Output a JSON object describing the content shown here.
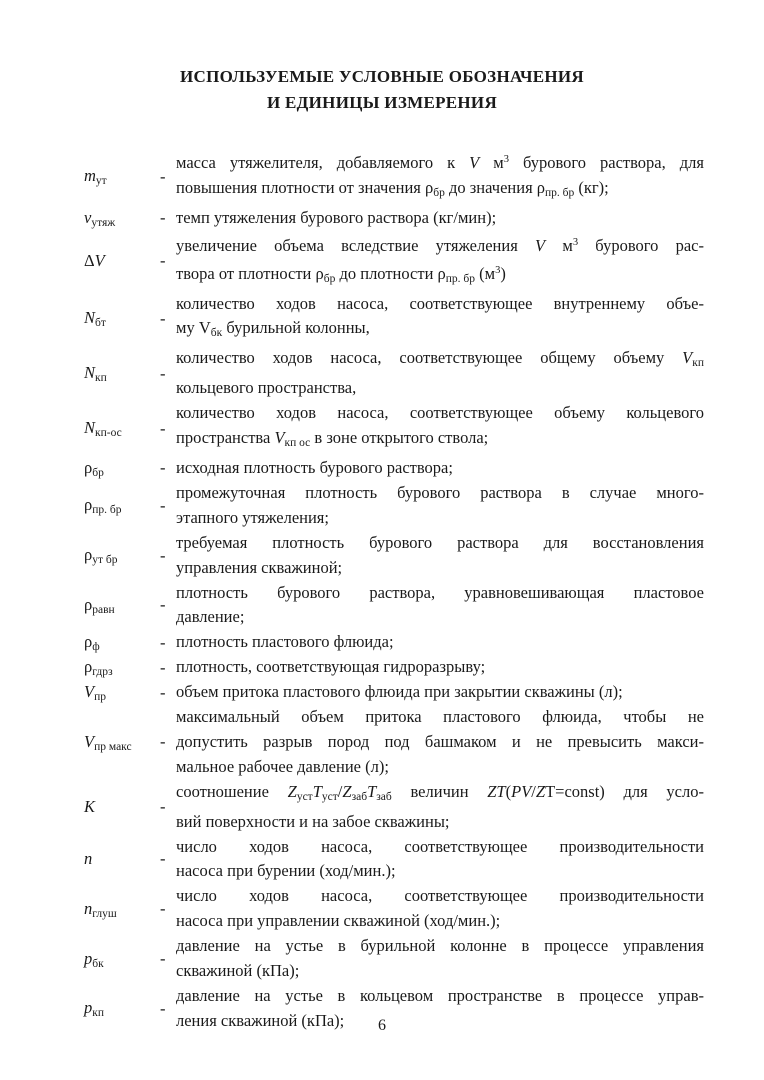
{
  "document": {
    "title_line1": "ИСПОЛЬЗУЕМЫЕ УСЛОВНЫЕ ОБОЗНАЧЕНИЯ",
    "title_line2": "И ЕДИНИЦЫ ИЗМЕРЕНИЯ",
    "separator": "-",
    "page_number": "6"
  },
  "entries": [
    {
      "symbol": [
        {
          "t": "m",
          "s": "i"
        },
        {
          "t": "ут",
          "s": "sub"
        }
      ],
      "definition_lines": [
        [
          {
            "t": "масса утяжелителя, добавляемого к "
          },
          {
            "t": "V",
            "s": "i"
          },
          {
            "t": " м"
          },
          {
            "t": "3",
            "s": "sup"
          },
          {
            "t": " бурового раствора, для"
          }
        ],
        [
          {
            "t": "повышения плотности от значения ρ"
          },
          {
            "t": "бр",
            "s": "sub"
          },
          {
            "t": " до значения ρ"
          },
          {
            "t": "пр. бр",
            "s": "sub"
          },
          {
            "t": " (кг);"
          }
        ]
      ]
    },
    {
      "symbol": [
        {
          "t": "v",
          "s": "i"
        },
        {
          "t": "утяж",
          "s": "sub"
        }
      ],
      "definition_lines": [
        [
          {
            "t": "темп утяжеления бурового раствора (кг/мин);"
          }
        ]
      ]
    },
    {
      "symbol": [
        {
          "t": "Δ"
        },
        {
          "t": "V",
          "s": "i"
        }
      ],
      "definition_lines": [
        [
          {
            "t": "увеличение объема вследствие утяжеления "
          },
          {
            "t": "V",
            "s": "i"
          },
          {
            "t": " м"
          },
          {
            "t": "3",
            "s": "sup"
          },
          {
            "t": " бурового рас-"
          }
        ],
        [
          {
            "t": "твора от плотности ρ"
          },
          {
            "t": "бр",
            "s": "sub"
          },
          {
            "t": " до плотности ρ"
          },
          {
            "t": "пр. бр",
            "s": "sub"
          },
          {
            "t": " (м"
          },
          {
            "t": "3",
            "s": "sup"
          },
          {
            "t": ")"
          }
        ]
      ]
    },
    {
      "symbol": [
        {
          "t": "N",
          "s": "i"
        },
        {
          "t": "бт",
          "s": "sub"
        }
      ],
      "definition_lines": [
        [
          {
            "t": "количество ходов насоса, соответствующее внутреннему объе-"
          }
        ],
        [
          {
            "t": "му V"
          },
          {
            "t": "бк",
            "s": "sub"
          },
          {
            "t": " бурильной колонны,"
          }
        ]
      ]
    },
    {
      "symbol": [
        {
          "t": "N",
          "s": "i"
        },
        {
          "t": "кп",
          "s": "sub"
        }
      ],
      "definition_lines": [
        [
          {
            "t": "количество ходов насоса, соответствующее общему объему "
          },
          {
            "t": "V",
            "s": "i"
          },
          {
            "t": "кп",
            "s": "sub"
          }
        ],
        [
          {
            "t": "кольцевого пространства,"
          }
        ]
      ]
    },
    {
      "symbol": [
        {
          "t": "N",
          "s": "i"
        },
        {
          "t": "кп-ос",
          "s": "sub"
        }
      ],
      "definition_lines": [
        [
          {
            "t": "количество ходов насоса, соответствующее объему кольцевого"
          }
        ],
        [
          {
            "t": "пространства "
          },
          {
            "t": "V",
            "s": "i"
          },
          {
            "t": "кп ос",
            "s": "sub"
          },
          {
            "t": " в зоне открытого ствола;"
          }
        ]
      ]
    },
    {
      "symbol": [
        {
          "t": "ρ"
        },
        {
          "t": "бр",
          "s": "sub"
        }
      ],
      "definition_lines": [
        [
          {
            "t": "исходная плотность бурового раствора;"
          }
        ]
      ]
    },
    {
      "symbol": [
        {
          "t": "ρ"
        },
        {
          "t": "пр. бр",
          "s": "sub"
        }
      ],
      "definition_lines": [
        [
          {
            "t": "промежуточная плотность бурового раствора в случае много-"
          }
        ],
        [
          {
            "t": "этапного утяжеления;"
          }
        ]
      ]
    },
    {
      "symbol": [
        {
          "t": "ρ"
        },
        {
          "t": "ут бр",
          "s": "sub"
        }
      ],
      "definition_lines": [
        [
          {
            "t": "требуемая плотность бурового раствора для восстановления"
          }
        ],
        [
          {
            "t": "управления скважиной;"
          }
        ]
      ]
    },
    {
      "symbol": [
        {
          "t": "ρ"
        },
        {
          "t": "равн",
          "s": "sub"
        }
      ],
      "definition_lines": [
        [
          {
            "t": "плотность бурового раствора, уравновешивающая пластовое"
          }
        ],
        [
          {
            "t": "давление;"
          }
        ]
      ]
    },
    {
      "symbol": [
        {
          "t": "ρ"
        },
        {
          "t": "ф",
          "s": "sub"
        }
      ],
      "definition_lines": [
        [
          {
            "t": "плотность пластового флюида;"
          }
        ]
      ]
    },
    {
      "symbol": [
        {
          "t": "ρ"
        },
        {
          "t": "гдрз",
          "s": "sub"
        }
      ],
      "definition_lines": [
        [
          {
            "t": "плотность, соответствующая гидроразрыву;"
          }
        ]
      ]
    },
    {
      "symbol": [
        {
          "t": "V",
          "s": "i"
        },
        {
          "t": "пр",
          "s": "sub"
        }
      ],
      "definition_lines": [
        [
          {
            "t": "объем притока пластового флюида при закрытии скважины (л);"
          }
        ]
      ]
    },
    {
      "symbol": [
        {
          "t": "V",
          "s": "i"
        },
        {
          "t": "пр макс",
          "s": "sub"
        }
      ],
      "definition_lines": [
        [
          {
            "t": "максимальный объем притока пластового флюида, чтобы не"
          }
        ],
        [
          {
            "t": "допустить разрыв пород под башмаком и не превысить макси-"
          }
        ],
        [
          {
            "t": "мальное рабочее давление (л);"
          }
        ]
      ]
    },
    {
      "symbol": [
        {
          "t": "K",
          "s": "i"
        }
      ],
      "definition_lines": [
        [
          {
            "t": "соотношение "
          },
          {
            "t": "Z",
            "s": "i"
          },
          {
            "t": "уст",
            "s": "sub"
          },
          {
            "t": "T",
            "s": "i"
          },
          {
            "t": "уст",
            "s": "sub"
          },
          {
            "t": "/"
          },
          {
            "t": "Z",
            "s": "i"
          },
          {
            "t": "заб",
            "s": "sub"
          },
          {
            "t": "T",
            "s": "i"
          },
          {
            "t": "заб",
            "s": "sub"
          },
          {
            "t": " величин "
          },
          {
            "t": "ZT",
            "s": "i"
          },
          {
            "t": "("
          },
          {
            "t": "PV",
            "s": "i"
          },
          {
            "t": "/"
          },
          {
            "t": "Z",
            "s": "i"
          },
          {
            "t": "T=const) для усло-"
          }
        ],
        [
          {
            "t": "вий поверхности и на забое скважины;"
          }
        ]
      ]
    },
    {
      "symbol": [
        {
          "t": "n",
          "s": "i"
        }
      ],
      "definition_lines": [
        [
          {
            "t": "число ходов насоса, соответствующее производительности"
          }
        ],
        [
          {
            "t": "насоса при бурении (ход/мин.);"
          }
        ]
      ]
    },
    {
      "symbol": [
        {
          "t": "n",
          "s": "i"
        },
        {
          "t": "глуш",
          "s": "sub"
        }
      ],
      "definition_lines": [
        [
          {
            "t": "число ходов насоса, соответствующее производительности"
          }
        ],
        [
          {
            "t": "насоса при управлении скважиной (ход/мин.);"
          }
        ]
      ]
    },
    {
      "symbol": [
        {
          "t": "p",
          "s": "i"
        },
        {
          "t": "бк",
          "s": "sub"
        }
      ],
      "definition_lines": [
        [
          {
            "t": "давление на устье в бурильной колонне в процессе управления"
          }
        ],
        [
          {
            "t": "скважиной (кПа);"
          }
        ]
      ]
    },
    {
      "symbol": [
        {
          "t": "p",
          "s": "i"
        },
        {
          "t": "кп",
          "s": "sub"
        }
      ],
      "definition_lines": [
        [
          {
            "t": "давление на устье в кольцевом пространстве в процессе управ-"
          }
        ],
        [
          {
            "t": "ления скважиной (кПа);"
          }
        ]
      ]
    }
  ]
}
